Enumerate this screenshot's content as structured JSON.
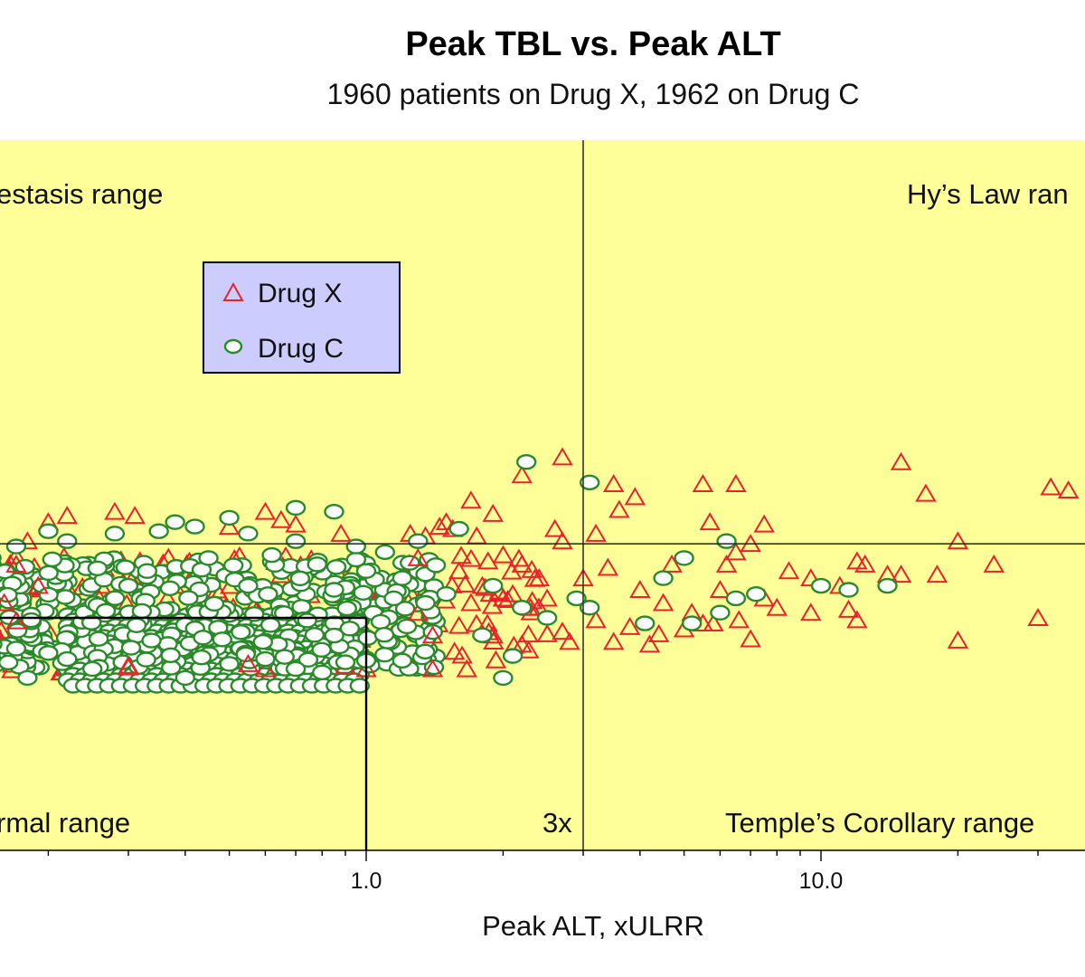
{
  "chart_data": {
    "type": "scatter",
    "title": "Peak TBL vs. Peak ALT",
    "subtitle": "1960 patients on Drug X, 1962 on Drug C",
    "xlabel": "Peak ALT, xULRR",
    "x_scale": "log",
    "x_ticks": [
      {
        "value": 1.0,
        "label": "1.0"
      },
      {
        "value": 10.0,
        "label": "10.0"
      }
    ],
    "xlim": [
      0.1,
      40
    ],
    "y_scale": "log",
    "ylim": [
      0.2,
      20
    ],
    "background_color": "#ffff99",
    "regions": [
      {
        "name": "cholestasis",
        "label": "estasis range",
        "position": "top-left"
      },
      {
        "name": "hys-law",
        "label": "Hy’s Law ran",
        "position": "top-right"
      },
      {
        "name": "normal",
        "label": "rmal range",
        "position": "bottom-left"
      },
      {
        "name": "temples-corollary",
        "label": "Temple’s Corollary range",
        "position": "bottom-right"
      }
    ],
    "threshold_label": "3x",
    "thresholds": {
      "alt_x": 3.0,
      "tbl_y": 2.0
    },
    "normal_box": {
      "x_max": 1.0,
      "y_max": 1.0
    },
    "legend": {
      "position": "top-left",
      "entries": [
        {
          "name": "Drug X",
          "marker": "triangle",
          "color": "#e8242a"
        },
        {
          "name": "Drug C",
          "marker": "circle",
          "color": "#2a8a2a"
        }
      ]
    },
    "series": [
      {
        "name": "Drug X",
        "marker": "triangle",
        "color": "#e8242a",
        "points": [
          [
            2.7,
            4.5
          ],
          [
            2.2,
            3.8
          ],
          [
            1.7,
            3.0
          ],
          [
            3.5,
            3.5
          ],
          [
            3.9,
            3.1
          ],
          [
            5.5,
            3.5
          ],
          [
            6.5,
            3.5
          ],
          [
            15,
            4.3
          ],
          [
            17,
            3.2
          ],
          [
            32,
            3.4
          ],
          [
            35,
            3.3
          ],
          [
            3.6,
            2.75
          ],
          [
            5.7,
            2.45
          ],
          [
            7.5,
            2.4
          ],
          [
            2.6,
            2.3
          ],
          [
            3.2,
            2.2
          ],
          [
            7.0,
            2.0
          ],
          [
            20,
            2.05
          ],
          [
            2.7,
            2.05
          ],
          [
            4.7,
            1.65
          ],
          [
            6.5,
            1.85
          ],
          [
            12,
            1.7
          ],
          [
            12.5,
            1.65
          ],
          [
            18,
            1.5
          ],
          [
            24,
            1.65
          ],
          [
            6.2,
            1.65
          ],
          [
            8.5,
            1.55
          ],
          [
            9.5,
            1.45
          ],
          [
            11,
            1.35
          ],
          [
            14,
            1.5
          ],
          [
            15,
            1.5
          ],
          [
            7.5,
            1.2
          ],
          [
            8,
            1.1
          ],
          [
            9.5,
            1.05
          ],
          [
            11.5,
            1.08
          ],
          [
            12,
            0.98
          ],
          [
            30,
            1.0
          ],
          [
            7.0,
            0.82
          ],
          [
            20,
            0.81
          ],
          [
            5.5,
            0.95
          ],
          [
            4.0,
            1.3
          ],
          [
            4.5,
            1.15
          ],
          [
            5.2,
            1.05
          ],
          [
            6.0,
            1.3
          ],
          [
            3.8,
            0.92
          ],
          [
            4.4,
            0.86
          ],
          [
            5.0,
            0.9
          ],
          [
            5.8,
            0.95
          ],
          [
            6.6,
            0.98
          ],
          [
            3.5,
            0.8
          ],
          [
            4.2,
            0.78
          ],
          [
            2.7,
            0.88
          ],
          [
            3.2,
            0.98
          ],
          [
            2.5,
            1.2
          ],
          [
            3.0,
            1.45
          ],
          [
            3.4,
            1.6
          ],
          [
            1.5,
            2.45
          ],
          [
            1.45,
            2.35
          ],
          [
            1.9,
            2.65
          ],
          [
            0.6,
            2.7
          ],
          [
            0.65,
            2.5
          ],
          [
            0.31,
            2.6
          ],
          [
            0.28,
            2.7
          ],
          [
            0.22,
            2.6
          ],
          [
            0.2,
            2.45
          ],
          [
            0.13,
            1.8
          ],
          [
            0.12,
            1.5
          ],
          [
            0.17,
            1.65
          ],
          [
            0.19,
            1.35
          ],
          [
            0.12,
            0.78
          ],
          [
            0.13,
            0.75
          ],
          [
            0.12,
            0.62
          ],
          [
            0.3,
            0.63
          ],
          [
            0.3,
            0.64
          ],
          [
            0.55,
            0.65
          ],
          [
            0.6,
            0.62
          ],
          [
            0.9,
            0.64
          ],
          [
            1.0,
            0.62
          ],
          [
            1.4,
            0.62
          ],
          [
            1.55,
            2.3
          ],
          [
            1.75,
            2.15
          ],
          [
            1.35,
            2.15
          ],
          [
            0.5,
            2.35
          ],
          [
            0.7,
            2.4
          ],
          [
            0.88,
            2.2
          ],
          [
            1.25,
            2.2
          ],
          [
            2.0,
            1.8
          ],
          [
            2.2,
            1.65
          ],
          [
            2.4,
            1.45
          ],
          [
            1.8,
            1.35
          ],
          [
            2.1,
            1.25
          ],
          [
            1.3,
            1.75
          ],
          [
            1.6,
            1.55
          ],
          [
            0.18,
            2.05
          ],
          [
            0.16,
            1.15
          ],
          [
            0.17,
            0.97
          ],
          [
            0.15,
            0.9
          ],
          [
            1.4,
            0.85
          ],
          [
            1.6,
            0.93
          ],
          [
            1.9,
            0.85
          ],
          [
            2.2,
            0.78
          ],
          [
            2.5,
            0.86
          ],
          [
            2.8,
            0.8
          ],
          [
            1.3,
            1.05
          ],
          [
            1.7,
            1.15
          ],
          [
            2.0,
            1.2
          ],
          [
            2.3,
            1.1
          ]
        ]
      },
      {
        "name": "Drug C",
        "marker": "circle",
        "color": "#2a8a2a",
        "points": [
          [
            2.25,
            4.3
          ],
          [
            3.1,
            3.55
          ],
          [
            0.7,
            2.8
          ],
          [
            0.85,
            2.7
          ],
          [
            0.38,
            2.45
          ],
          [
            0.42,
            2.35
          ],
          [
            0.5,
            2.55
          ],
          [
            0.55,
            2.2
          ],
          [
            0.28,
            2.2
          ],
          [
            0.35,
            2.25
          ],
          [
            0.2,
            2.25
          ],
          [
            0.22,
            2.05
          ],
          [
            0.17,
            1.95
          ],
          [
            0.15,
            1.75
          ],
          [
            1.6,
            2.3
          ],
          [
            1.3,
            2.05
          ],
          [
            1.1,
            1.85
          ],
          [
            0.95,
            1.95
          ],
          [
            0.7,
            2.05
          ],
          [
            6.2,
            2.05
          ],
          [
            5.0,
            1.75
          ],
          [
            4.5,
            1.45
          ],
          [
            7.2,
            1.25
          ],
          [
            6.5,
            1.2
          ],
          [
            6.0,
            1.05
          ],
          [
            5.2,
            0.95
          ],
          [
            4.1,
            0.95
          ],
          [
            10.0,
            1.35
          ],
          [
            11.5,
            1.3
          ],
          [
            14.0,
            1.35
          ],
          [
            1.5,
            1.25
          ],
          [
            1.9,
            1.35
          ],
          [
            2.2,
            1.1
          ],
          [
            2.5,
            1.0
          ],
          [
            2.9,
            1.2
          ],
          [
            3.1,
            1.1
          ],
          [
            1.8,
            0.85
          ],
          [
            2.1,
            0.7
          ],
          [
            2.0,
            0.57
          ],
          [
            1.2,
            0.67
          ],
          [
            1.0,
            0.67
          ],
          [
            0.13,
            1.2
          ],
          [
            0.11,
            1.05
          ],
          [
            0.14,
            0.95
          ],
          [
            0.17,
            0.75
          ],
          [
            0.2,
            0.72
          ],
          [
            0.22,
            0.68
          ],
          [
            0.25,
            0.62
          ],
          [
            0.18,
            0.57
          ],
          [
            0.4,
            0.57
          ],
          [
            0.5,
            0.65
          ],
          [
            0.6,
            0.68
          ],
          [
            0.7,
            0.62
          ],
          [
            0.8,
            0.6
          ],
          [
            0.9,
            0.66
          ],
          [
            0.33,
            1.55
          ],
          [
            0.45,
            1.75
          ],
          [
            0.62,
            1.8
          ],
          [
            0.78,
            1.65
          ],
          [
            1.0,
            1.55
          ],
          [
            1.2,
            1.45
          ],
          [
            0.3,
            1.35
          ],
          [
            0.55,
            1.35
          ],
          [
            0.85,
            1.3
          ],
          [
            1.15,
            1.2
          ],
          [
            1.35,
            1.15
          ]
        ]
      }
    ]
  }
}
